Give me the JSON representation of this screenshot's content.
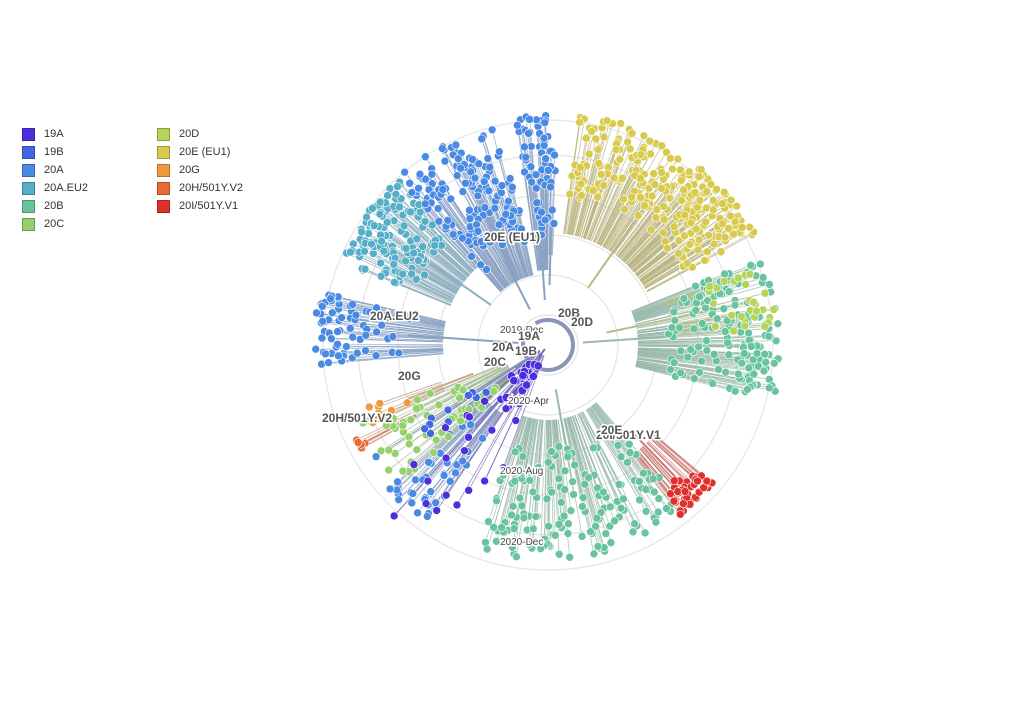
{
  "legend": {
    "col1": [
      {
        "label": "19A",
        "color": "#4c2fdc"
      },
      {
        "label": "19B",
        "color": "#4367e3"
      },
      {
        "label": "20A",
        "color": "#4a8ae3"
      },
      {
        "label": "20A.EU2",
        "color": "#56aec7"
      },
      {
        "label": "20B",
        "color": "#69c49e"
      },
      {
        "label": "20C",
        "color": "#94d16d"
      }
    ],
    "col2": [
      {
        "label": "20D",
        "color": "#b5d55a"
      },
      {
        "label": "20E (EU1)",
        "color": "#d8ca4d"
      },
      {
        "label": "20G",
        "color": "#f09a3e"
      },
      {
        "label": "20H/501Y.V2",
        "color": "#ea6a36"
      },
      {
        "label": "20I/501Y.V1",
        "color": "#e0302b"
      }
    ]
  },
  "clades": [
    {
      "name": "19A",
      "color": "#4c2fdc",
      "label": "19A"
    },
    {
      "name": "19B",
      "color": "#4367e3",
      "label": "19B"
    },
    {
      "name": "20A",
      "color": "#4a8ae3",
      "label": "20A"
    },
    {
      "name": "20A.EU2",
      "color": "#56aec7",
      "label": "20A.EU2"
    },
    {
      "name": "20B",
      "color": "#69c49e",
      "label": "20B"
    },
    {
      "name": "20C",
      "color": "#94d16d",
      "label": "20C"
    },
    {
      "name": "20D",
      "color": "#b5d55a",
      "label": "20D"
    },
    {
      "name": "20E (EU1)",
      "color": "#d8ca4d",
      "label": "20E (EU1)"
    },
    {
      "name": "20G",
      "color": "#f09a3e",
      "label": "20G"
    },
    {
      "name": "20H/501Y.V2",
      "color": "#ea6a36",
      "label": "20H/501Y.V2"
    },
    {
      "name": "20I/501Y.V1",
      "color": "#e0302b",
      "label": "20I/501Y.V1"
    },
    {
      "name": "20E",
      "color": "#69c49e",
      "label": "20E"
    }
  ],
  "time_axis": [
    {
      "label": "2019-Dec"
    },
    {
      "label": "2020-Apr"
    },
    {
      "label": "2020-Aug"
    },
    {
      "label": "2020-Dec"
    }
  ]
}
